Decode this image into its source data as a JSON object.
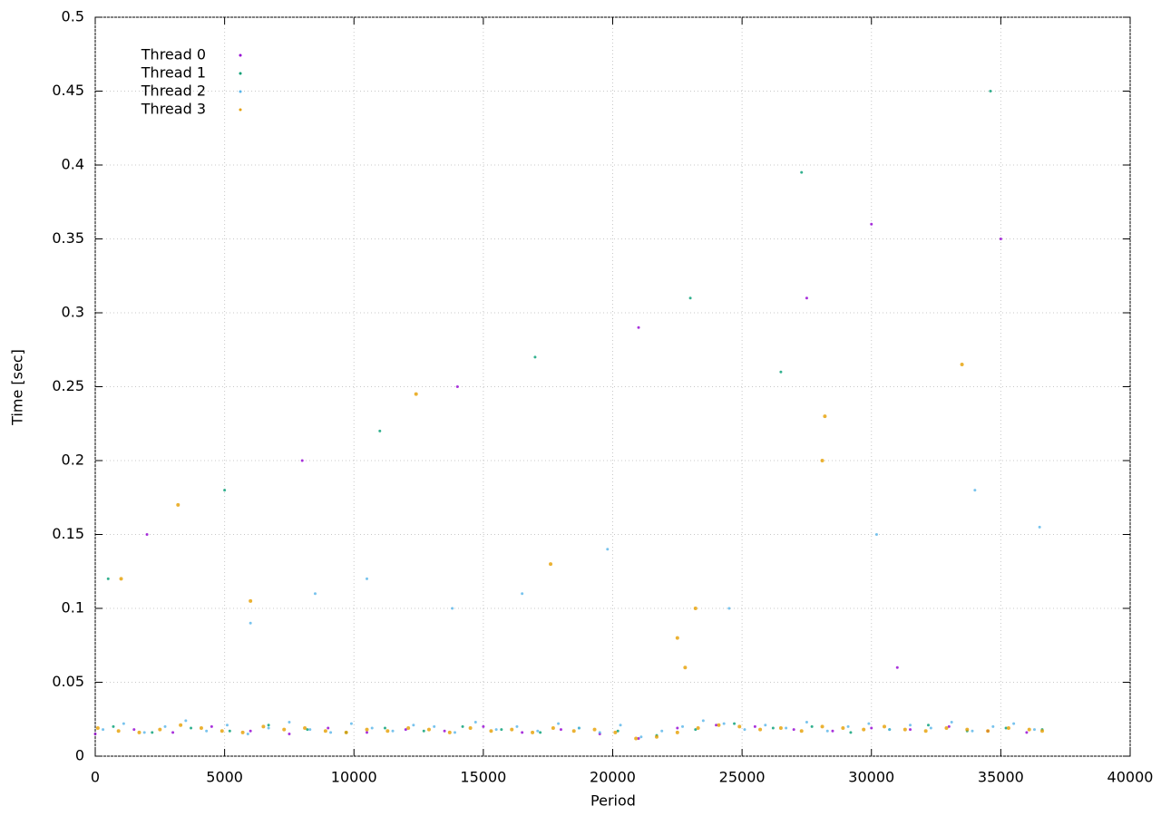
{
  "chart_data": {
    "type": "scatter",
    "x_label": "Period",
    "y_label": "Time [sec]",
    "xlim": [
      0,
      40000
    ],
    "ylim": [
      0,
      0.5
    ],
    "xticks": [
      0,
      5000,
      10000,
      15000,
      20000,
      25000,
      30000,
      35000,
      40000
    ],
    "yticks": [
      0,
      0.05,
      0.1,
      0.15,
      0.2,
      0.25,
      0.3,
      0.35,
      0.4,
      0.45,
      0.5
    ],
    "grid": true,
    "legend": "upper-left",
    "series": [
      {
        "name": "Thread 0",
        "color": "#9400d3",
        "x": [
          0,
          1500,
          3000,
          4500,
          6000,
          7500,
          9000,
          10500,
          12000,
          13500,
          15000,
          16500,
          18000,
          19500,
          21000,
          22500,
          24000,
          25500,
          27000,
          28500,
          30000,
          31500,
          33000,
          34500,
          36000,
          2000,
          8000,
          14000,
          21000,
          27500,
          30000,
          35000,
          31000
        ],
        "values": [
          0.015,
          0.018,
          0.016,
          0.02,
          0.017,
          0.015,
          0.019,
          0.016,
          0.018,
          0.017,
          0.02,
          0.016,
          0.018,
          0.015,
          0.012,
          0.019,
          0.021,
          0.02,
          0.018,
          0.017,
          0.019,
          0.018,
          0.02,
          0.017,
          0.016,
          0.15,
          0.2,
          0.25,
          0.29,
          0.31,
          0.36,
          0.35,
          0.06
        ]
      },
      {
        "name": "Thread 1",
        "color": "#009e73",
        "x": [
          700,
          2200,
          3700,
          5200,
          6700,
          8200,
          9700,
          11200,
          12700,
          14200,
          15700,
          17200,
          18700,
          20200,
          21700,
          23200,
          24700,
          26200,
          27700,
          29200,
          30700,
          32200,
          33700,
          35200,
          36600,
          500,
          5000,
          11000,
          17000,
          23000,
          27300,
          34600,
          26500
        ],
        "values": [
          0.02,
          0.016,
          0.019,
          0.017,
          0.021,
          0.018,
          0.016,
          0.019,
          0.017,
          0.02,
          0.018,
          0.016,
          0.019,
          0.017,
          0.014,
          0.018,
          0.022,
          0.019,
          0.02,
          0.016,
          0.018,
          0.021,
          0.017,
          0.019,
          0.018,
          0.12,
          0.18,
          0.22,
          0.27,
          0.31,
          0.395,
          0.45,
          0.26
        ]
      },
      {
        "name": "Thread 2",
        "color": "#56b4e9",
        "x": [
          300,
          1100,
          1900,
          2700,
          3500,
          4300,
          5100,
          5900,
          6700,
          7500,
          8300,
          9100,
          9900,
          10700,
          11500,
          12300,
          13100,
          13900,
          14700,
          15500,
          16300,
          17100,
          17900,
          18700,
          19500,
          20300,
          21100,
          21900,
          22700,
          23500,
          24300,
          25100,
          25900,
          26700,
          27500,
          28300,
          29100,
          29900,
          30700,
          31500,
          32300,
          33100,
          33900,
          34700,
          35500,
          36300,
          6000,
          10500,
          13800,
          16500,
          19800,
          24500,
          30200,
          34000,
          36500,
          8500
        ],
        "values": [
          0.018,
          0.022,
          0.016,
          0.02,
          0.024,
          0.017,
          0.021,
          0.015,
          0.019,
          0.023,
          0.018,
          0.016,
          0.022,
          0.019,
          0.017,
          0.021,
          0.02,
          0.016,
          0.023,
          0.018,
          0.02,
          0.017,
          0.022,
          0.019,
          0.016,
          0.021,
          0.013,
          0.017,
          0.02,
          0.024,
          0.022,
          0.018,
          0.021,
          0.019,
          0.023,
          0.017,
          0.02,
          0.022,
          0.018,
          0.021,
          0.019,
          0.023,
          0.017,
          0.02,
          0.022,
          0.018,
          0.09,
          0.12,
          0.1,
          0.11,
          0.14,
          0.1,
          0.15,
          0.18,
          0.155,
          0.11
        ]
      },
      {
        "name": "Thread 3",
        "color": "#e69f00",
        "x": [
          100,
          900,
          1700,
          2500,
          3300,
          4100,
          4900,
          5700,
          6500,
          7300,
          8100,
          8900,
          9700,
          10500,
          11300,
          12100,
          12900,
          13700,
          14500,
          15300,
          16100,
          16900,
          17700,
          18500,
          19300,
          20100,
          20900,
          21700,
          22500,
          23300,
          24100,
          24900,
          25700,
          26500,
          27300,
          28100,
          28900,
          29700,
          30500,
          31300,
          32100,
          32900,
          33700,
          34500,
          35300,
          36100,
          36600,
          6000,
          12400,
          17600,
          22500,
          22800,
          23200,
          28200,
          28100,
          33500,
          1000,
          3200
        ],
        "values": [
          0.019,
          0.017,
          0.016,
          0.018,
          0.021,
          0.019,
          0.017,
          0.016,
          0.02,
          0.018,
          0.019,
          0.017,
          0.016,
          0.018,
          0.017,
          0.019,
          0.018,
          0.016,
          0.019,
          0.017,
          0.018,
          0.016,
          0.019,
          0.017,
          0.018,
          0.016,
          0.012,
          0.013,
          0.016,
          0.019,
          0.021,
          0.02,
          0.018,
          0.019,
          0.017,
          0.02,
          0.019,
          0.018,
          0.02,
          0.018,
          0.017,
          0.019,
          0.018,
          0.017,
          0.019,
          0.018,
          0.017,
          0.105,
          0.245,
          0.13,
          0.08,
          0.06,
          0.1,
          0.23,
          0.2,
          0.265,
          0.12,
          0.17
        ]
      }
    ]
  }
}
